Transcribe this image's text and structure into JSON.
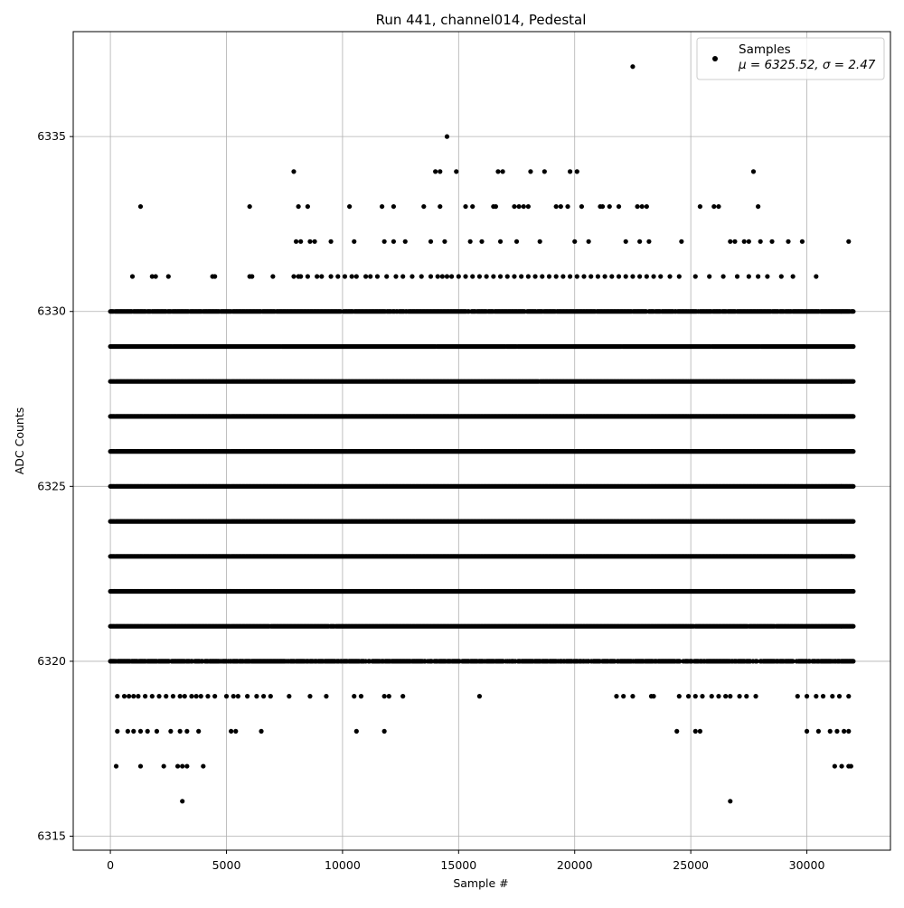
{
  "chart_data": {
    "type": "scatter",
    "title": "Run 441, channel014, Pedestal",
    "xlabel": "Sample #",
    "ylabel": "ADC Counts",
    "xlim": [
      -1600,
      33600
    ],
    "ylim": [
      6314.6,
      6338.0
    ],
    "xticks": [
      0,
      5000,
      10000,
      15000,
      20000,
      25000,
      30000
    ],
    "yticks": [
      6315,
      6320,
      6325,
      6330,
      6335
    ],
    "grid": true,
    "legend": {
      "placement": "upper right",
      "label_line1": "Samples",
      "label_line2": "μ = 6325.52, σ = 2.47"
    },
    "series": [
      {
        "name": "Samples",
        "color": "#000000",
        "marker": "circle",
        "x_range": [
          0,
          32000
        ],
        "levels": [
          {
            "y": 6330,
            "min": 1,
            "max": 12
          },
          {
            "y": 6329,
            "min": 2,
            "max": 18
          },
          {
            "y": 6328,
            "min": 4,
            "max": 24
          },
          {
            "y": 6327,
            "min": 12,
            "max": 32
          },
          {
            "y": 6326,
            "min": 18,
            "max": 38
          },
          {
            "y": 6325,
            "min": 24,
            "max": 40
          },
          {
            "y": 6324,
            "min": 22,
            "max": 38
          },
          {
            "y": 6323,
            "min": 16,
            "max": 32
          },
          {
            "y": 6322,
            "min": 10,
            "max": 24
          },
          {
            "y": 6321,
            "min": 4,
            "max": 16
          },
          {
            "y": 6320,
            "min": 1,
            "max": 8
          }
        ],
        "sparse_band": {
          "y": 6331,
          "x": [
            950,
            1800,
            1950,
            2500,
            4400,
            4500,
            6000,
            6100,
            7000,
            7900,
            8100,
            8200,
            8500,
            8900,
            9100,
            9500,
            9800,
            10100,
            10400,
            10600,
            11000,
            11200,
            11500,
            11900,
            12300,
            12600,
            13000,
            13400,
            13800,
            14100,
            14300,
            14500,
            14700,
            15000,
            15300,
            15600,
            15900,
            16200,
            16500,
            16800,
            17100,
            17400,
            17700,
            18000,
            18300,
            18600,
            18900,
            19200,
            19500,
            19800,
            20100,
            20400,
            20700,
            21000,
            21300,
            21600,
            21900,
            22200,
            22500,
            22800,
            23100,
            23400,
            23700,
            24100,
            24500,
            25200,
            25800,
            26400,
            27000,
            27500,
            27900,
            28300,
            28900,
            29400,
            30400
          ]
        },
        "outliers": [
          [
            1300,
            6333
          ],
          [
            6000,
            6333
          ],
          [
            7900,
            6334
          ],
          [
            8100,
            6333
          ],
          [
            8500,
            6333
          ],
          [
            8000,
            6332
          ],
          [
            8200,
            6332
          ],
          [
            8600,
            6332
          ],
          [
            8800,
            6332
          ],
          [
            9500,
            6332
          ],
          [
            10300,
            6333
          ],
          [
            10500,
            6332
          ],
          [
            11700,
            6333
          ],
          [
            11800,
            6332
          ],
          [
            12200,
            6333
          ],
          [
            12200,
            6332
          ],
          [
            12700,
            6332
          ],
          [
            13500,
            6333
          ],
          [
            13800,
            6332
          ],
          [
            14000,
            6334
          ],
          [
            14200,
            6334
          ],
          [
            14200,
            6333
          ],
          [
            14400,
            6332
          ],
          [
            14500,
            6335
          ],
          [
            14900,
            6334
          ],
          [
            15300,
            6333
          ],
          [
            15600,
            6333
          ],
          [
            15500,
            6332
          ],
          [
            16000,
            6332
          ],
          [
            16500,
            6333
          ],
          [
            16600,
            6333
          ],
          [
            16700,
            6334
          ],
          [
            16900,
            6334
          ],
          [
            16800,
            6332
          ],
          [
            17400,
            6333
          ],
          [
            17600,
            6333
          ],
          [
            17800,
            6333
          ],
          [
            17500,
            6332
          ],
          [
            18100,
            6334
          ],
          [
            18000,
            6333
          ],
          [
            18700,
            6334
          ],
          [
            18500,
            6332
          ],
          [
            19200,
            6333
          ],
          [
            19400,
            6333
          ],
          [
            19800,
            6334
          ],
          [
            19700,
            6333
          ],
          [
            20100,
            6334
          ],
          [
            20300,
            6333
          ],
          [
            20000,
            6332
          ],
          [
            20600,
            6332
          ],
          [
            21100,
            6333
          ],
          [
            21200,
            6333
          ],
          [
            21500,
            6333
          ],
          [
            21900,
            6333
          ],
          [
            22200,
            6332
          ],
          [
            22500,
            6337
          ],
          [
            22700,
            6333
          ],
          [
            22900,
            6333
          ],
          [
            23100,
            6333
          ],
          [
            22800,
            6332
          ],
          [
            23200,
            6332
          ],
          [
            24600,
            6332
          ],
          [
            25400,
            6333
          ],
          [
            26000,
            6333
          ],
          [
            26200,
            6333
          ],
          [
            26700,
            6332
          ],
          [
            26900,
            6332
          ],
          [
            27300,
            6332
          ],
          [
            27500,
            6332
          ],
          [
            27700,
            6334
          ],
          [
            27900,
            6333
          ],
          [
            28000,
            6332
          ],
          [
            28500,
            6332
          ],
          [
            29200,
            6332
          ],
          [
            29800,
            6332
          ],
          [
            31800,
            6332
          ],
          [
            300,
            6319
          ],
          [
            600,
            6319
          ],
          [
            800,
            6319
          ],
          [
            1000,
            6319
          ],
          [
            1200,
            6319
          ],
          [
            1500,
            6319
          ],
          [
            1800,
            6319
          ],
          [
            2100,
            6319
          ],
          [
            2400,
            6319
          ],
          [
            2700,
            6319
          ],
          [
            3000,
            6319
          ],
          [
            3200,
            6319
          ],
          [
            3500,
            6319
          ],
          [
            3700,
            6319
          ],
          [
            3900,
            6319
          ],
          [
            4200,
            6319
          ],
          [
            4500,
            6319
          ],
          [
            5000,
            6319
          ],
          [
            5300,
            6319
          ],
          [
            5500,
            6319
          ],
          [
            5900,
            6319
          ],
          [
            6300,
            6319
          ],
          [
            6600,
            6319
          ],
          [
            6900,
            6319
          ],
          [
            7700,
            6319
          ],
          [
            8600,
            6319
          ],
          [
            9300,
            6319
          ],
          [
            10500,
            6319
          ],
          [
            10800,
            6319
          ],
          [
            11800,
            6319
          ],
          [
            12000,
            6319
          ],
          [
            12600,
            6319
          ],
          [
            15900,
            6319
          ],
          [
            21800,
            6319
          ],
          [
            22100,
            6319
          ],
          [
            22500,
            6319
          ],
          [
            23300,
            6319
          ],
          [
            23400,
            6319
          ],
          [
            24500,
            6319
          ],
          [
            24900,
            6319
          ],
          [
            25200,
            6319
          ],
          [
            25500,
            6319
          ],
          [
            25900,
            6319
          ],
          [
            26200,
            6319
          ],
          [
            26500,
            6319
          ],
          [
            26700,
            6319
          ],
          [
            27100,
            6319
          ],
          [
            27400,
            6319
          ],
          [
            27800,
            6319
          ],
          [
            29600,
            6319
          ],
          [
            30000,
            6319
          ],
          [
            30400,
            6319
          ],
          [
            30700,
            6319
          ],
          [
            31100,
            6319
          ],
          [
            31400,
            6319
          ],
          [
            31800,
            6319
          ],
          [
            300,
            6318
          ],
          [
            750,
            6318
          ],
          [
            1000,
            6318
          ],
          [
            1300,
            6318
          ],
          [
            1600,
            6318
          ],
          [
            2000,
            6318
          ],
          [
            2600,
            6318
          ],
          [
            3000,
            6318
          ],
          [
            3300,
            6318
          ],
          [
            3800,
            6318
          ],
          [
            5200,
            6318
          ],
          [
            5400,
            6318
          ],
          [
            6500,
            6318
          ],
          [
            10600,
            6318
          ],
          [
            11800,
            6318
          ],
          [
            24400,
            6318
          ],
          [
            25200,
            6318
          ],
          [
            25400,
            6318
          ],
          [
            30000,
            6318
          ],
          [
            30500,
            6318
          ],
          [
            31000,
            6318
          ],
          [
            31300,
            6318
          ],
          [
            31600,
            6318
          ],
          [
            31800,
            6318
          ],
          [
            250,
            6317
          ],
          [
            1300,
            6317
          ],
          [
            2300,
            6317
          ],
          [
            2900,
            6317
          ],
          [
            3100,
            6317
          ],
          [
            3300,
            6317
          ],
          [
            4000,
            6317
          ],
          [
            31200,
            6317
          ],
          [
            31500,
            6317
          ],
          [
            31800,
            6317
          ],
          [
            31900,
            6317
          ],
          [
            3100,
            6316
          ],
          [
            26700,
            6316
          ]
        ]
      }
    ]
  }
}
